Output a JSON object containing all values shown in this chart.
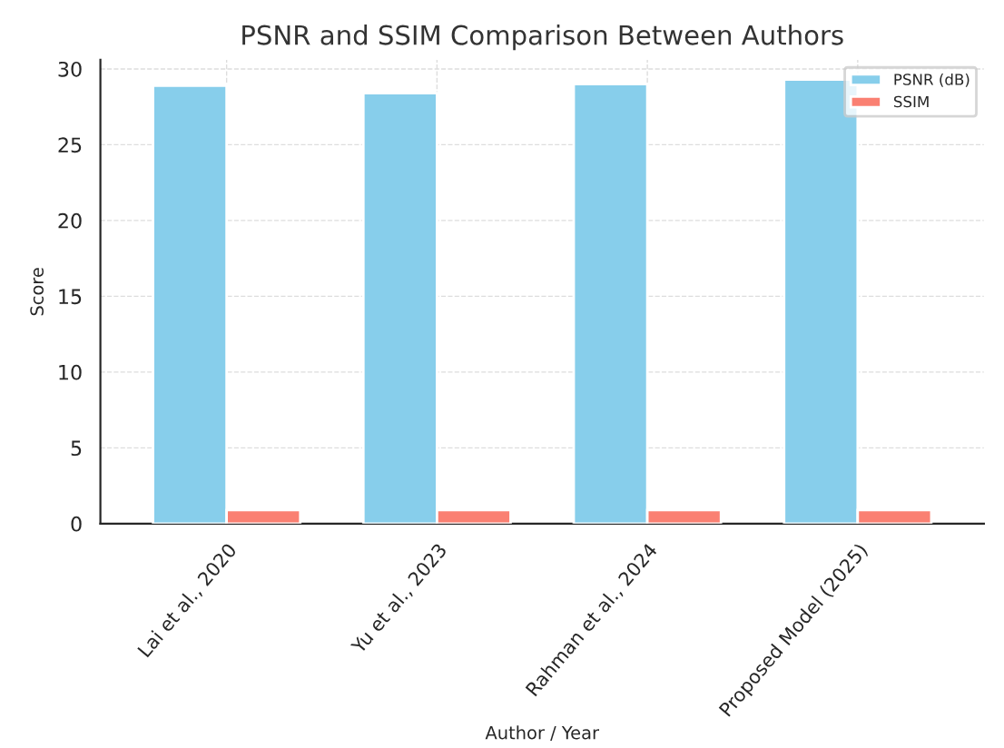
{
  "chart_data": {
    "type": "bar",
    "title": "PSNR and SSIM Comparison Between Authors",
    "xlabel": "Author / Year",
    "ylabel": "Score",
    "categories": [
      "Lai et al., 2020",
      "Yu et al., 2023",
      "Rahman et al., 2024",
      "Proposed Model (2025)"
    ],
    "series": [
      {
        "name": "PSNR (dB)",
        "color": "#87ceeb",
        "values": [
          28.9,
          28.4,
          29.0,
          29.3
        ]
      },
      {
        "name": "SSIM",
        "color": "#fa8072",
        "values": [
          0.9,
          0.9,
          0.9,
          0.9
        ]
      }
    ],
    "ylim": [
      0,
      30.6
    ],
    "yticks": [
      0,
      5,
      10,
      15,
      20,
      25,
      30
    ],
    "grid": true,
    "legend": "top right"
  }
}
